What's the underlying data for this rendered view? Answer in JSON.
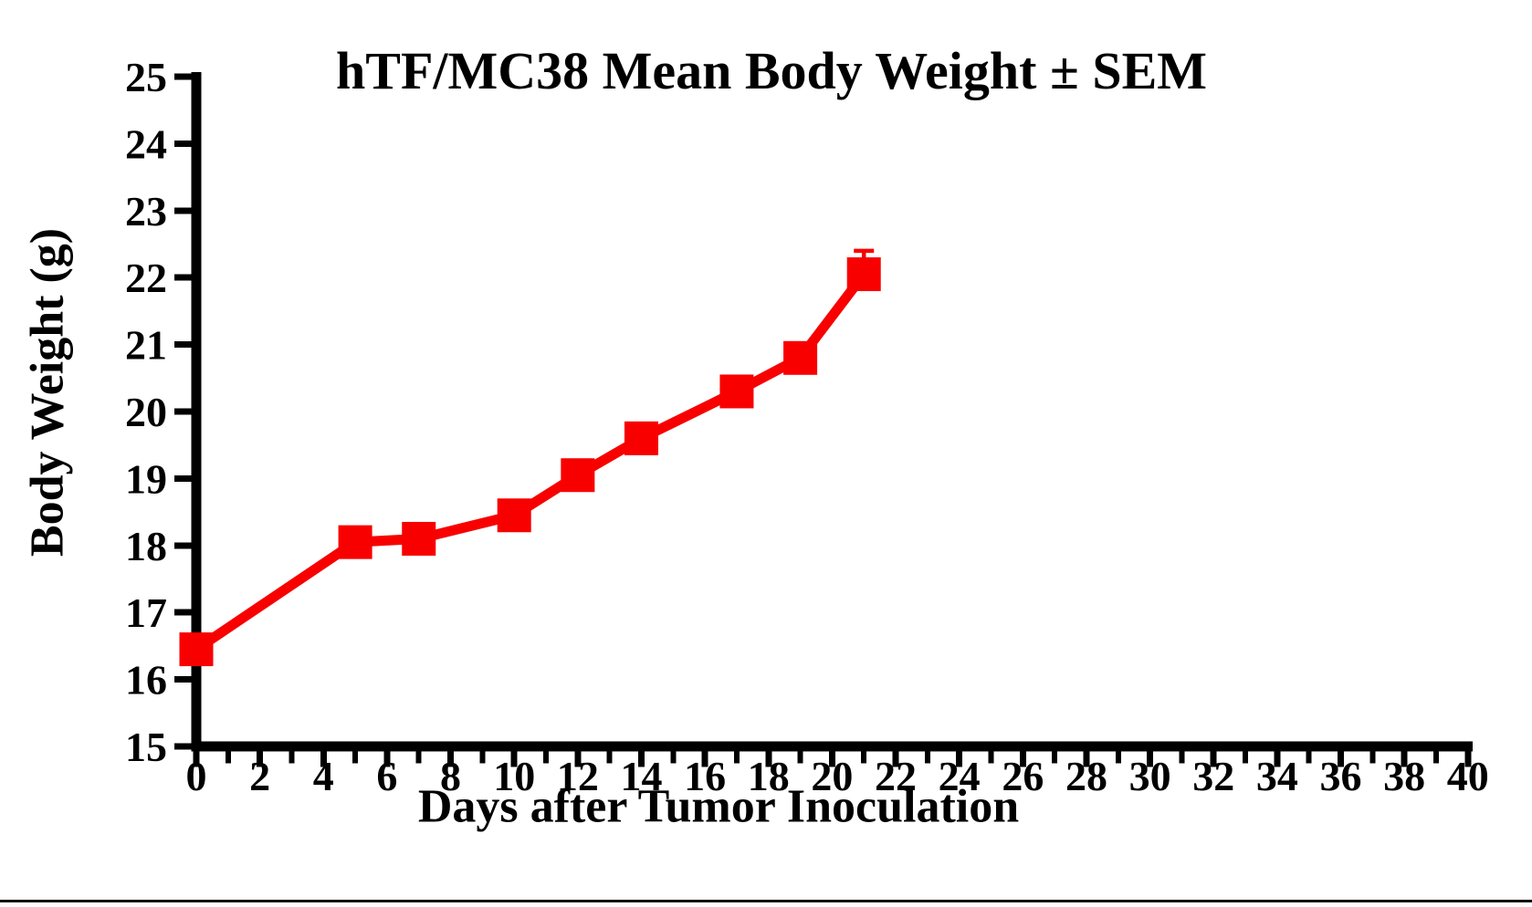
{
  "chart_data": {
    "type": "line",
    "title": "hTF/MC38 Mean Body Weight ± SEM",
    "xlabel": "Days after Tumor Inoculation",
    "ylabel": "Body Weight (g)",
    "xlim": [
      0,
      40
    ],
    "ylim": [
      15,
      25
    ],
    "x_tick_labels": [
      0,
      2,
      4,
      6,
      8,
      10,
      12,
      14,
      16,
      18,
      20,
      22,
      24,
      26,
      28,
      30,
      32,
      34,
      36,
      38,
      40
    ],
    "x_minor_tick_step": 1,
    "y_tick_labels": [
      15,
      16,
      17,
      18,
      19,
      20,
      21,
      22,
      23,
      24,
      25
    ],
    "grid": false,
    "legend": "none",
    "axis_color": "#000000",
    "series": [
      {
        "name": "hTF/MC38",
        "color": "#f80000",
        "marker": "square",
        "x": [
          0,
          5,
          7,
          10,
          12,
          14,
          17,
          19,
          21
        ],
        "y": [
          16.45,
          18.05,
          18.1,
          18.45,
          19.05,
          19.6,
          20.3,
          20.8,
          22.05
        ],
        "sem_upper": [
          0,
          0,
          0,
          0,
          0,
          0,
          0,
          0,
          0.35
        ]
      }
    ]
  }
}
